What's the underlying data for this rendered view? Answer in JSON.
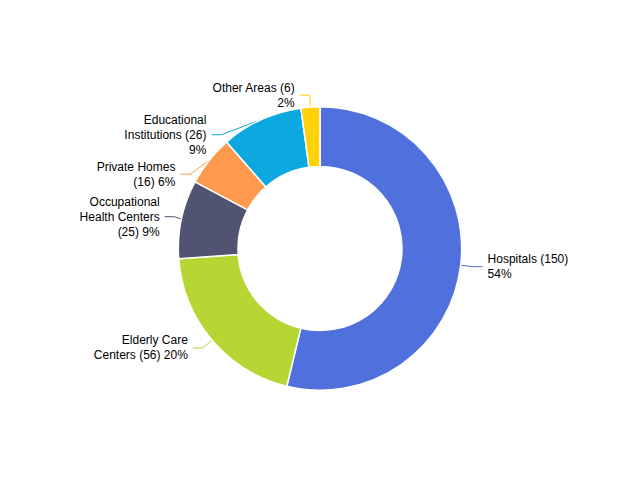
{
  "chart_data": {
    "type": "donut",
    "values": [
      150,
      56,
      25,
      16,
      26,
      6
    ],
    "value_labels": [
      "Hospitals (150)\n54%",
      "Elderly Care\nCenters (56) 20%",
      "Occupational\nHealth Centers\n(25) 9%",
      "Private Homes\n(16) 6%",
      "Educational\nInstitutions (26)\n9%",
      "Other Areas (6)\n2%"
    ]
  }
}
